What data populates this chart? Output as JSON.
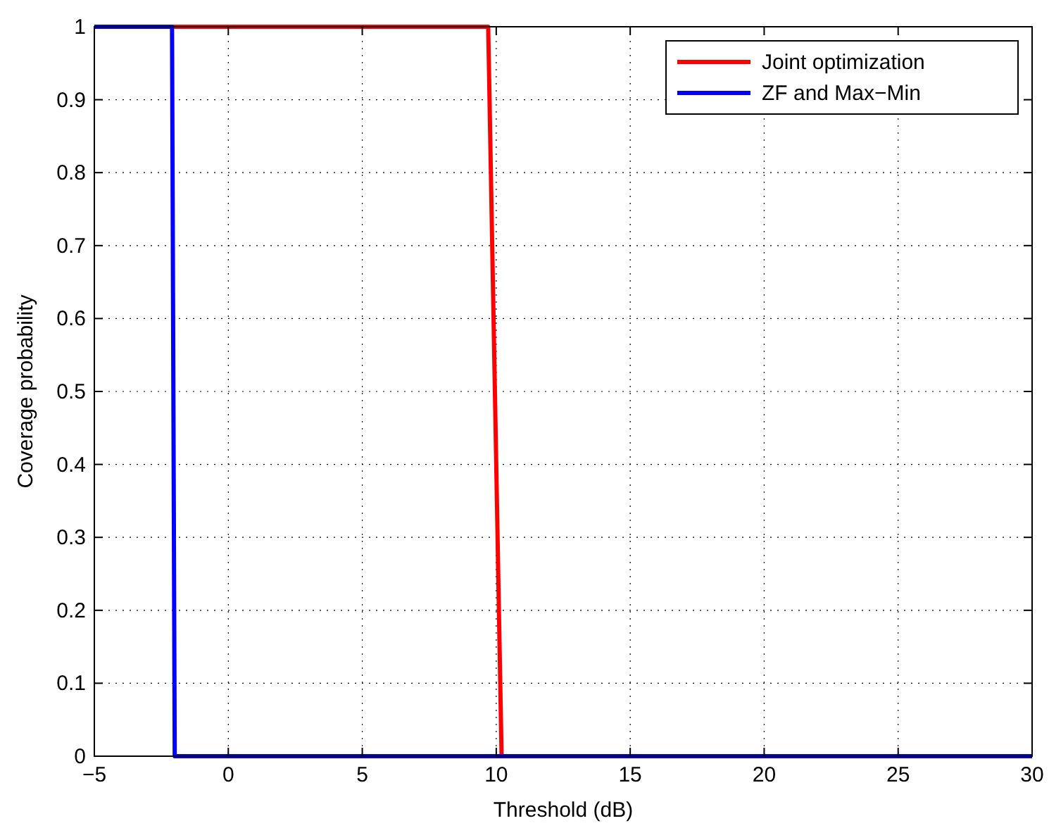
{
  "chart_data": {
    "type": "line",
    "xlabel": "Threshold (dB)",
    "ylabel": "Coverage probability",
    "series": [
      {
        "name": "Joint optimization",
        "color": "#ff0000",
        "x": [
          -5,
          9.7,
          10.2,
          30
        ],
        "values": [
          1,
          1,
          0,
          0
        ]
      },
      {
        "name": "ZF and Max−Min",
        "color": "#0000ff",
        "x": [
          -5,
          -2.1,
          -2.0,
          30
        ],
        "values": [
          1,
          1,
          0,
          0
        ]
      }
    ],
    "xlim": [
      -5,
      30
    ],
    "xticks": [
      {
        "value": -5,
        "label": "−5"
      },
      0,
      5,
      10,
      15,
      20,
      25,
      30
    ],
    "ylim": [
      0,
      1
    ],
    "yticks": [
      0,
      0.1,
      0.2,
      0.3,
      0.4,
      0.5,
      0.6,
      0.7,
      0.8,
      0.9,
      1
    ],
    "grid": true,
    "legend": "top right",
    "line_style": "solid",
    "marker": "none"
  }
}
